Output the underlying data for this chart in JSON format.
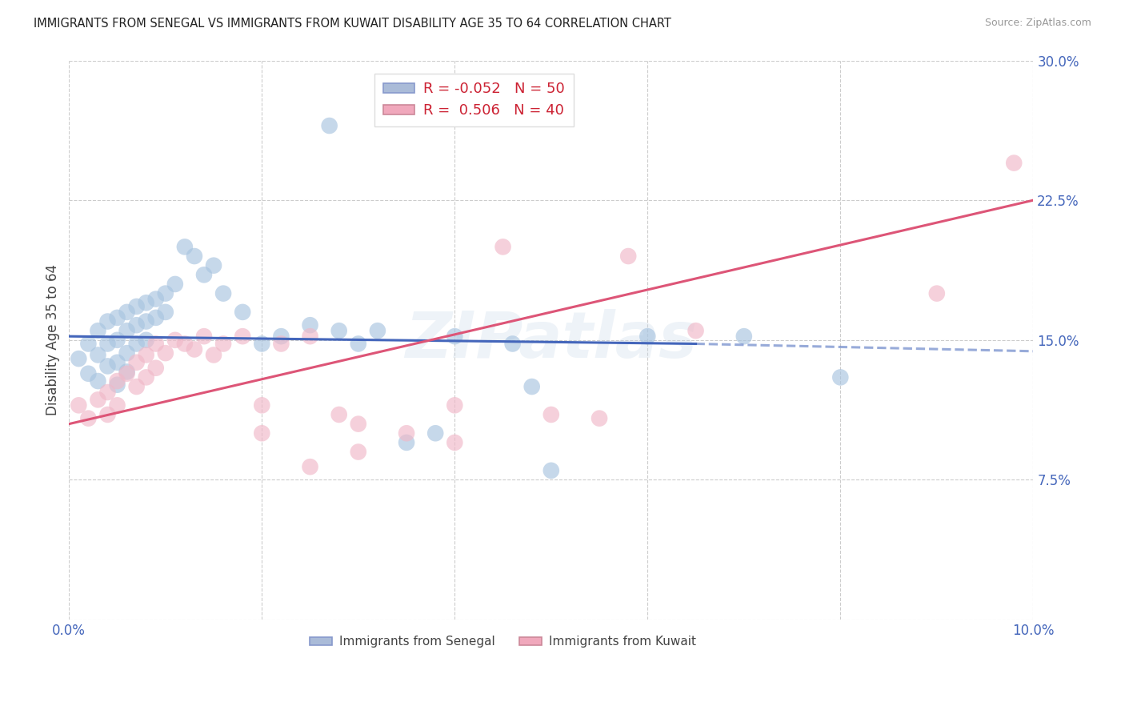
{
  "title": "IMMIGRANTS FROM SENEGAL VS IMMIGRANTS FROM KUWAIT DISABILITY AGE 35 TO 64 CORRELATION CHART",
  "source": "Source: ZipAtlas.com",
  "ylabel": "Disability Age 35 to 64",
  "xlim": [
    0.0,
    0.1
  ],
  "ylim": [
    0.0,
    0.3
  ],
  "xticks": [
    0.0,
    0.02,
    0.04,
    0.06,
    0.08,
    0.1
  ],
  "xticklabels": [
    "0.0%",
    "",
    "",
    "",
    "",
    "10.0%"
  ],
  "yticks": [
    0.0,
    0.075,
    0.15,
    0.225,
    0.3
  ],
  "yticklabels": [
    "",
    "7.5%",
    "15.0%",
    "22.5%",
    "30.0%"
  ],
  "watermark": "ZIPatlas",
  "senegal_color": "#a8c4e0",
  "kuwait_color": "#f0b8c8",
  "background_color": "#ffffff",
  "grid_color": "#cccccc",
  "senegal_line_color": "#4466bb",
  "kuwait_line_color": "#dd5577",
  "legend_box_senegal": "#aabbd8",
  "legend_box_kuwait": "#f0a8bc",
  "senegal_x": [
    0.001,
    0.002,
    0.002,
    0.003,
    0.003,
    0.003,
    0.004,
    0.004,
    0.004,
    0.005,
    0.005,
    0.005,
    0.005,
    0.006,
    0.006,
    0.006,
    0.006,
    0.007,
    0.007,
    0.007,
    0.008,
    0.008,
    0.008,
    0.009,
    0.009,
    0.01,
    0.01,
    0.011,
    0.012,
    0.013,
    0.014,
    0.015,
    0.016,
    0.018,
    0.02,
    0.022,
    0.025,
    0.028,
    0.027,
    0.03,
    0.032,
    0.035,
    0.038,
    0.04,
    0.046,
    0.05,
    0.06,
    0.07,
    0.08,
    0.048
  ],
  "senegal_y": [
    0.14,
    0.148,
    0.132,
    0.155,
    0.142,
    0.128,
    0.16,
    0.148,
    0.136,
    0.162,
    0.15,
    0.138,
    0.126,
    0.165,
    0.155,
    0.143,
    0.133,
    0.168,
    0.158,
    0.148,
    0.17,
    0.16,
    0.15,
    0.172,
    0.162,
    0.175,
    0.165,
    0.18,
    0.2,
    0.195,
    0.185,
    0.19,
    0.175,
    0.165,
    0.148,
    0.152,
    0.158,
    0.155,
    0.265,
    0.148,
    0.155,
    0.095,
    0.1,
    0.152,
    0.148,
    0.08,
    0.152,
    0.152,
    0.13,
    0.125
  ],
  "kuwait_x": [
    0.001,
    0.002,
    0.003,
    0.004,
    0.004,
    0.005,
    0.005,
    0.006,
    0.007,
    0.007,
    0.008,
    0.008,
    0.009,
    0.009,
    0.01,
    0.011,
    0.012,
    0.013,
    0.014,
    0.015,
    0.016,
    0.018,
    0.02,
    0.022,
    0.025,
    0.028,
    0.03,
    0.035,
    0.04,
    0.045,
    0.05,
    0.055,
    0.058,
    0.065,
    0.04,
    0.03,
    0.025,
    0.02,
    0.09,
    0.098
  ],
  "kuwait_y": [
    0.115,
    0.108,
    0.118,
    0.122,
    0.11,
    0.128,
    0.115,
    0.132,
    0.138,
    0.125,
    0.142,
    0.13,
    0.148,
    0.135,
    0.143,
    0.15,
    0.148,
    0.145,
    0.152,
    0.142,
    0.148,
    0.152,
    0.115,
    0.148,
    0.152,
    0.11,
    0.105,
    0.1,
    0.115,
    0.2,
    0.11,
    0.108,
    0.195,
    0.155,
    0.095,
    0.09,
    0.082,
    0.1,
    0.175,
    0.245
  ],
  "sen_line_x0": 0.0,
  "sen_line_x_solid_end": 0.065,
  "sen_line_x1": 0.1,
  "sen_line_y_at_0": 0.152,
  "sen_line_y_at_065": 0.148,
  "sen_line_y_at_10": 0.144,
  "kuw_line_y_at_0": 0.105,
  "kuw_line_y_at_10": 0.225
}
